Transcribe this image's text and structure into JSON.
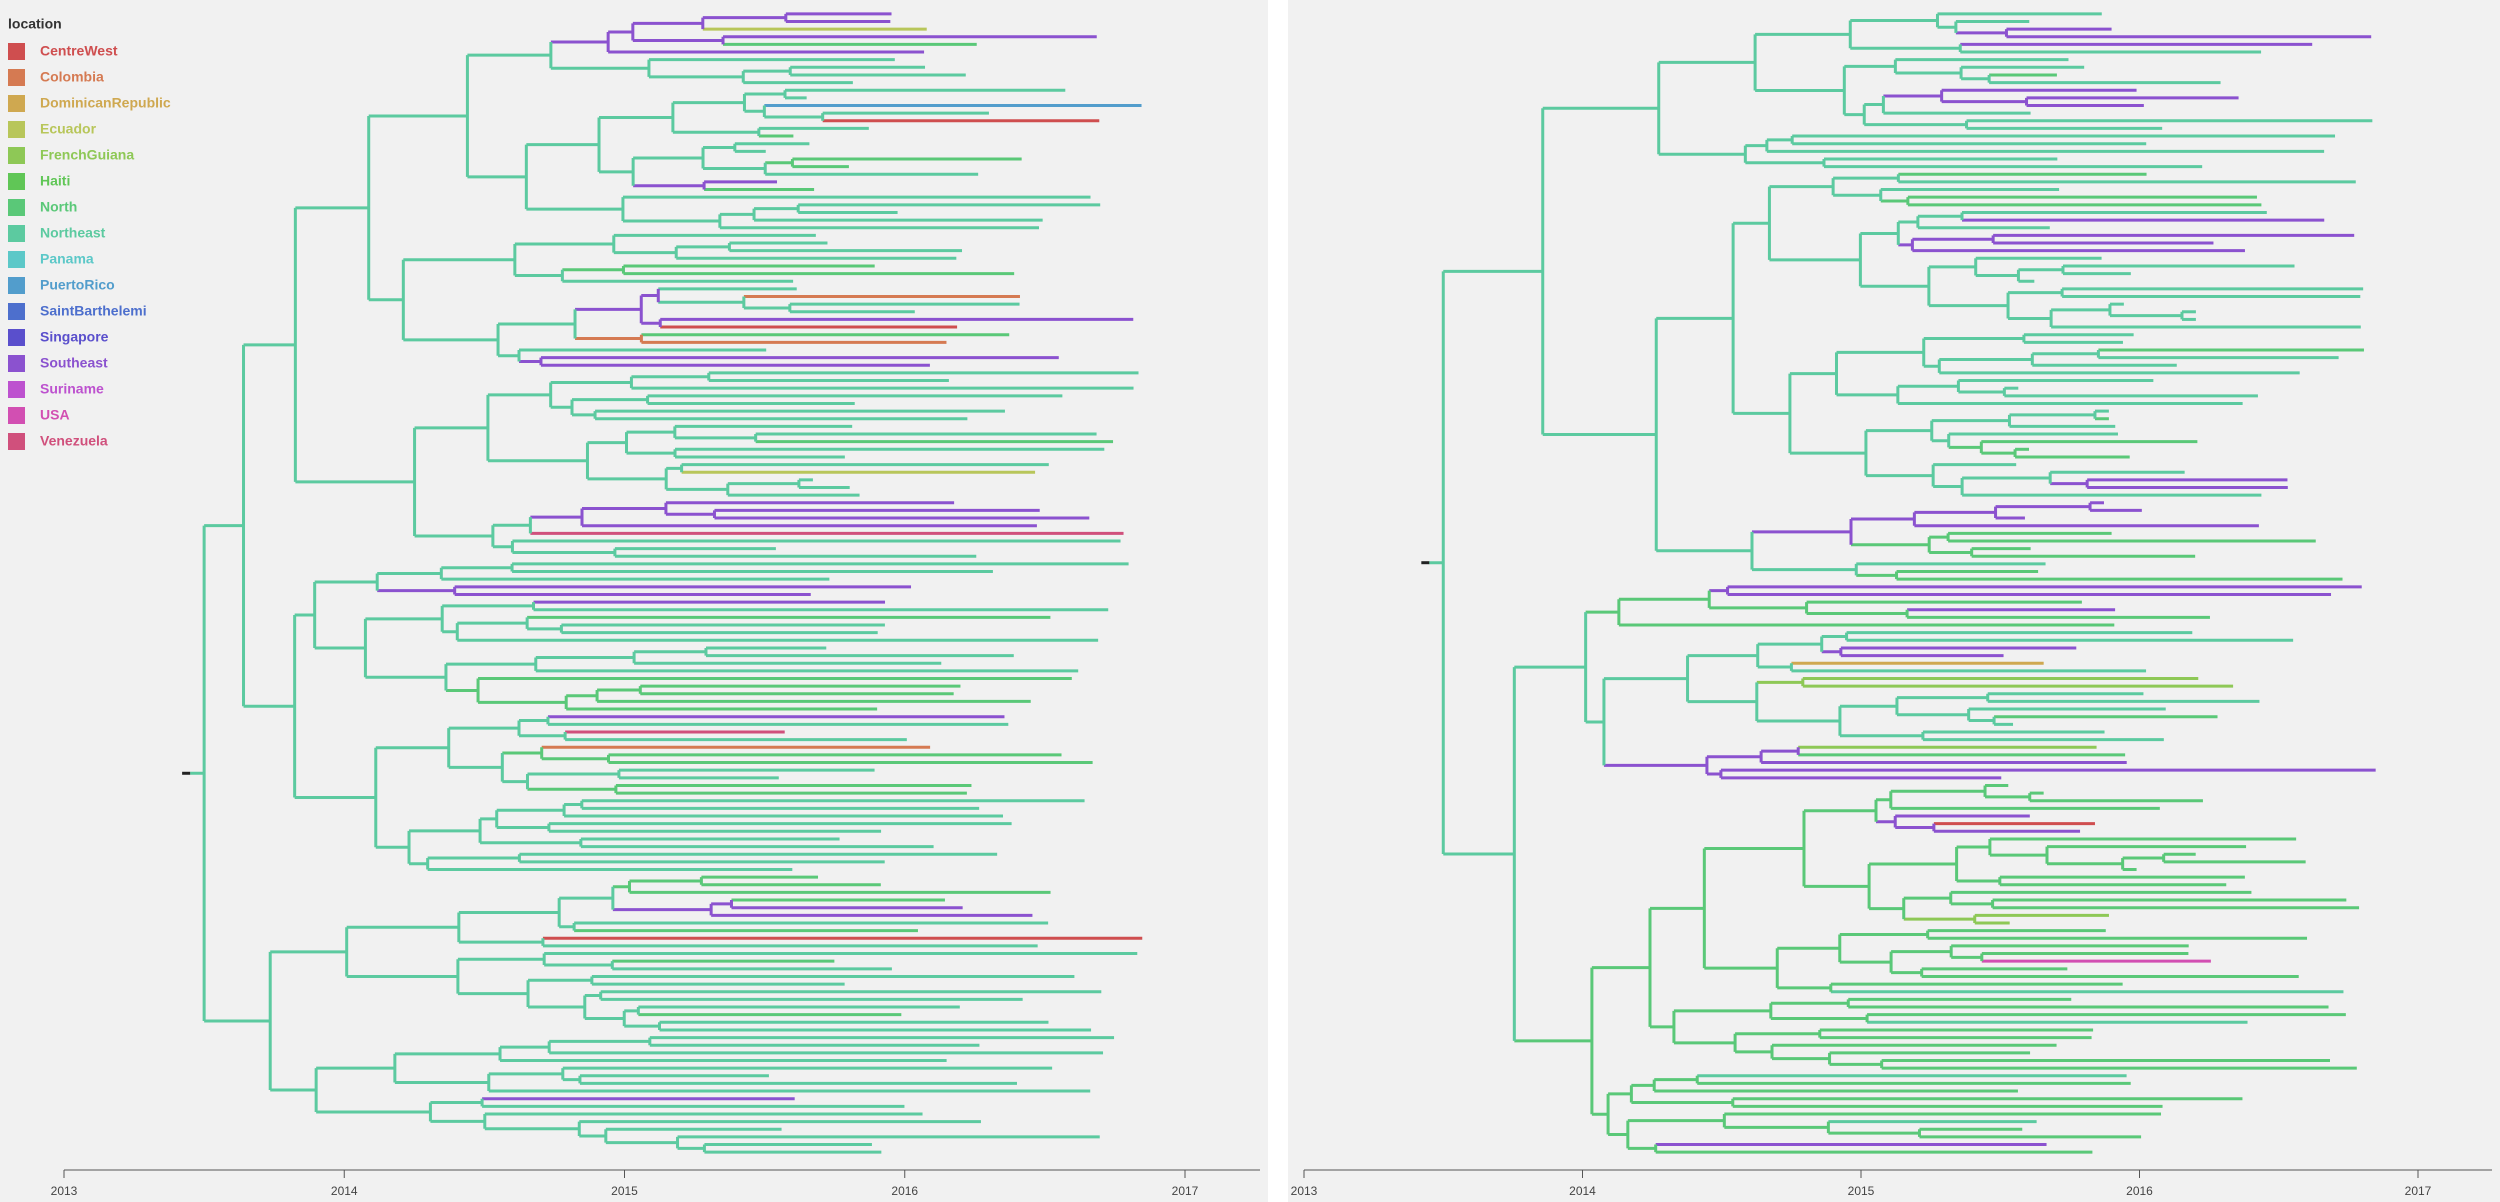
{
  "legend": {
    "title": "location",
    "items": [
      {
        "name": "CentreWest",
        "color": "#cf4e4f"
      },
      {
        "name": "Colombia",
        "color": "#d57a52"
      },
      {
        "name": "DominicanRepublic",
        "color": "#cfa850"
      },
      {
        "name": "Ecuador",
        "color": "#b8c65a"
      },
      {
        "name": "FrenchGuiana",
        "color": "#8ec856"
      },
      {
        "name": "Haiti",
        "color": "#60c656"
      },
      {
        "name": "North",
        "color": "#5ac878"
      },
      {
        "name": "Northeast",
        "color": "#5ccaa0"
      },
      {
        "name": "Panama",
        "color": "#5cc8c8"
      },
      {
        "name": "PuertoRico",
        "color": "#529dcc"
      },
      {
        "name": "SaintBarthelemi",
        "color": "#4d6fcd"
      },
      {
        "name": "Singapore",
        "color": "#5a4fcc"
      },
      {
        "name": "Southeast",
        "color": "#8b52cf"
      },
      {
        "name": "Suriname",
        "color": "#bd52cf"
      },
      {
        "name": "USA",
        "color": "#d24fb2"
      },
      {
        "name": "Venezuela",
        "color": "#d0507c"
      }
    ]
  },
  "panels": [
    {
      "axis": {
        "ticks": [
          2013,
          2014,
          2015,
          2016,
          2017
        ]
      }
    },
    {
      "axis": {
        "ticks": [
          2013,
          2014,
          2015,
          2016,
          2017
        ]
      }
    }
  ]
}
